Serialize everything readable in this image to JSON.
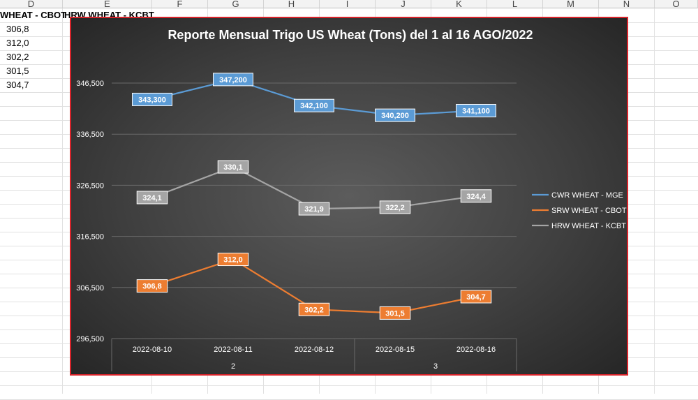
{
  "sheet": {
    "columns": [
      "D",
      "E",
      "F",
      "G",
      "H",
      "I",
      "J",
      "K",
      "L",
      "M",
      "N",
      "O"
    ],
    "header_cells": [
      "WHEAT - CBOT",
      "HRW WHEAT - KCBT"
    ],
    "d_values": [
      "306,8",
      "312,0",
      "302,2",
      "301,5",
      "304,7"
    ]
  },
  "chart_data": {
    "type": "line",
    "title": "Reporte Mensual Trigo US Wheat (Tons) del 1 al 16 AGO/2022",
    "categories": [
      "2022-08-10",
      "2022-08-11",
      "2022-08-12",
      "2022-08-15",
      "2022-08-16"
    ],
    "groups": [
      {
        "label": "2",
        "span": [
          0,
          2
        ]
      },
      {
        "label": "3",
        "span": [
          3,
          4
        ]
      }
    ],
    "ylim": [
      296500,
      346500
    ],
    "yticks": [
      296500,
      306500,
      316500,
      326500,
      336500,
      346500
    ],
    "ytick_labels": [
      "296,500",
      "306,500",
      "316,500",
      "326,500",
      "336,500",
      "346,500"
    ],
    "grid": true,
    "legend_position": "right",
    "series": [
      {
        "name": "CWR WHEAT - MGE",
        "color": "#5b9bd5",
        "values": [
          343300,
          347200,
          342100,
          340200,
          341100
        ],
        "labels": [
          "343,300",
          "347,200",
          "342,100",
          "340,200",
          "341,100"
        ]
      },
      {
        "name": "SRW WHEAT - CBOT",
        "color": "#ed7d31",
        "values": [
          306800,
          312000,
          302200,
          301500,
          304700
        ],
        "labels": [
          "306,8",
          "312,0",
          "302,2",
          "301,5",
          "304,7"
        ]
      },
      {
        "name": "HRW WHEAT - KCBT",
        "color": "#a5a5a5",
        "values": [
          324100,
          330100,
          321900,
          322200,
          324400
        ],
        "labels": [
          "324,1",
          "330,1",
          "321,9",
          "322,2",
          "324,4"
        ]
      }
    ]
  }
}
